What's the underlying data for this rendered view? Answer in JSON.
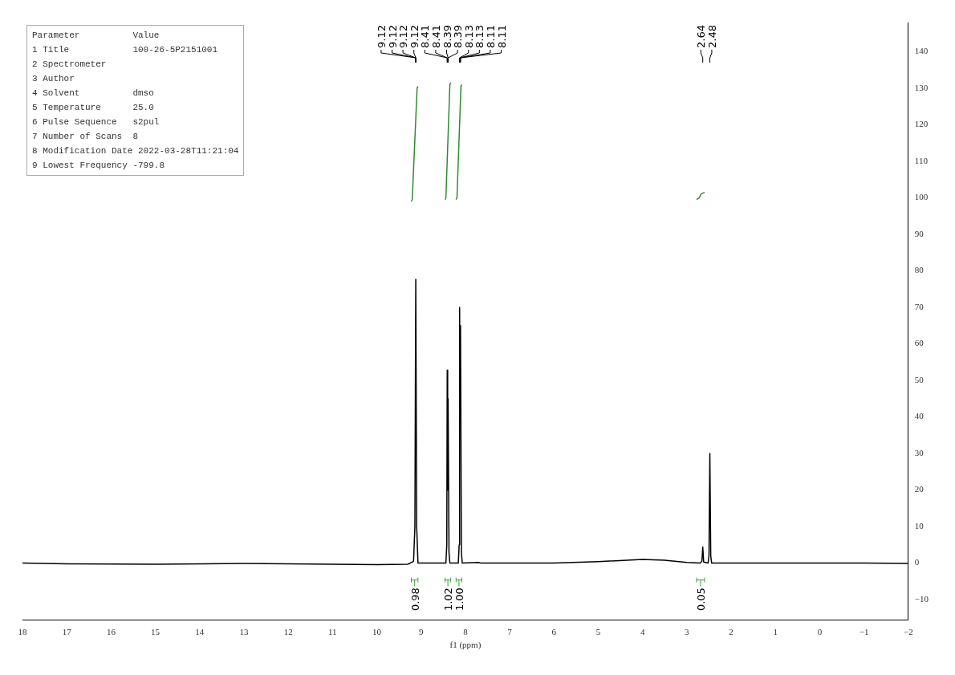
{
  "chart_data": {
    "type": "line",
    "xlabel": "f1 (ppm)",
    "xlim": [
      18,
      -2
    ],
    "xticks": [
      18,
      17,
      16,
      15,
      14,
      13,
      12,
      11,
      10,
      9,
      8,
      7,
      6,
      5,
      4,
      3,
      2,
      1,
      0,
      {
        "value": -1,
        "label": "−1"
      },
      {
        "value": -2,
        "label": "−2"
      }
    ],
    "ylim": [
      -15.6,
      148
    ],
    "yticks": [
      {
        "value": -10,
        "label": "−10"
      },
      0,
      10,
      20,
      30,
      40,
      50,
      60,
      70,
      80,
      90,
      100,
      110,
      120,
      130,
      140
    ],
    "grid": false,
    "legend": false,
    "marker": "none",
    "line_style": "solid",
    "series": [
      {
        "color": "#000000",
        "x": [
          18,
          17,
          15,
          13,
          11,
          10,
          9.3,
          9.17,
          9.14,
          9.12,
          9.1,
          9.07,
          8.44,
          8.42,
          8.41,
          8.4,
          8.39,
          8.37,
          8.35,
          8.16,
          8.14,
          8.13,
          8.12,
          8.11,
          8.09,
          8.07,
          7.7,
          7.65,
          6,
          5,
          4,
          3.5,
          3,
          2.7,
          2.66,
          2.64,
          2.62,
          2.52,
          2.5,
          2.48,
          2.46,
          2.44,
          2,
          1,
          0,
          -1,
          -2
        ],
        "values": [
          0,
          -0.2,
          -0.3,
          -0.1,
          -0.3,
          -0.4,
          -0.3,
          0.5,
          10,
          77.7,
          10,
          0,
          0,
          5,
          52.8,
          20,
          45,
          3,
          0,
          0,
          5,
          70,
          40,
          65,
          3,
          0,
          0.2,
          0,
          0,
          0.4,
          1,
          0.8,
          0.2,
          0,
          0.5,
          4.4,
          0.3,
          0,
          2,
          30,
          2,
          0,
          0,
          0,
          0,
          0,
          -0.1
        ]
      },
      {
        "color": "#2e8b2e",
        "x": [
          9.22,
          9.2,
          9.09,
          9.07
        ],
        "values": [
          99,
          99.5,
          130,
          130.5
        ]
      },
      {
        "color": "#2e8b2e",
        "x": [
          8.46,
          8.44,
          8.35,
          8.33
        ],
        "values": [
          99.5,
          100,
          131,
          131.5
        ]
      },
      {
        "color": "#2e8b2e",
        "x": [
          8.21,
          8.19,
          8.1,
          8.08
        ],
        "values": [
          99.5,
          100,
          130.5,
          131
        ]
      },
      {
        "color": "#2e8b2e",
        "x": [
          2.78,
          2.72,
          2.7,
          2.68,
          2.6
        ],
        "values": [
          99.5,
          100,
          100.5,
          101,
          101.5
        ]
      }
    ],
    "annotations": [
      "Parameter          Value",
      "1 Title            100-26-5P2151001",
      "2 Spectrometer",
      "3 Author",
      "4 Solvent          dmso",
      "5 Temperature      25.0",
      "6 Pulse Sequence   s2pul",
      "7 Number of Scans  8",
      "8 Modification Date 2022-03-28T11:21:04",
      "9 Lowest Frequency -799.8",
      {
        "text": "9.12",
        "x": 9.12
      },
      {
        "text": "9.12",
        "x": 9.12
      },
      {
        "text": "9.12",
        "x": 9.12
      },
      {
        "text": "9.12",
        "x": 9.12
      },
      {
        "text": "8.41",
        "x": 8.41
      },
      {
        "text": "8.41",
        "x": 8.41
      },
      {
        "text": "8.39",
        "x": 8.39
      },
      {
        "text": "8.39",
        "x": 8.39
      },
      {
        "text": "8.13",
        "x": 8.13
      },
      {
        "text": "8.13",
        "x": 8.13
      },
      {
        "text": "8.11",
        "x": 8.11
      },
      {
        "text": "8.11",
        "x": 8.11
      },
      {
        "text": "2.64",
        "x": 2.64
      },
      {
        "text": "2.48",
        "x": 2.48
      },
      "0.98",
      "1.02",
      "1.00",
      "0.05"
    ]
  }
}
